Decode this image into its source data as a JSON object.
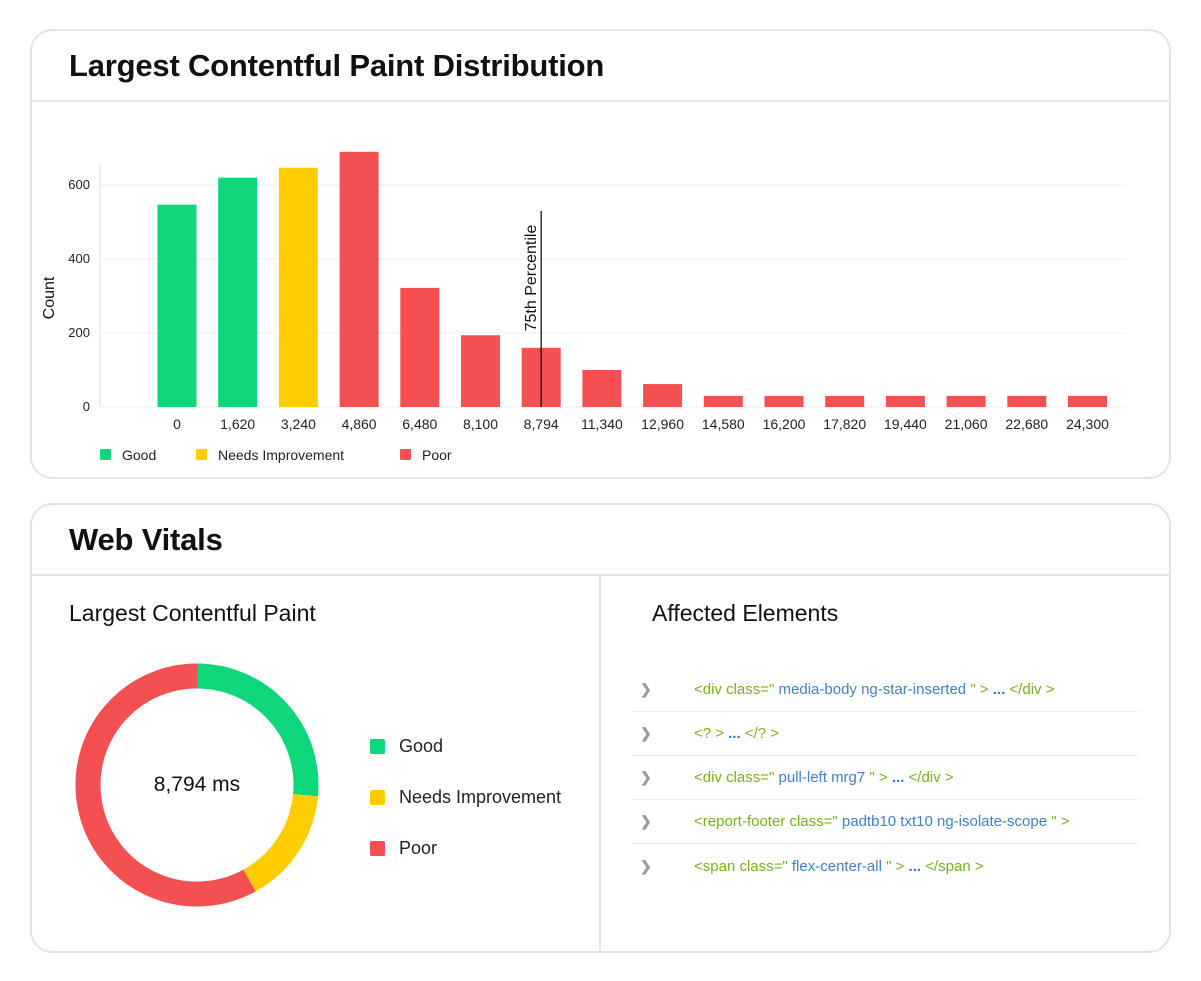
{
  "distribution": {
    "title": "Largest Contentful Paint Distribution"
  },
  "chart_data": {
    "type": "bar",
    "title": "Largest Contentful Paint Distribution",
    "xlabel": "",
    "ylabel": "Count",
    "ylim": [
      0,
      630
    ],
    "yticks": [
      0,
      200,
      400,
      600
    ],
    "grid": true,
    "legend_position": "bottom-left",
    "categories": [
      "0",
      "1,620",
      "3,240",
      "4,860",
      "6,480",
      "8,100",
      "8,794",
      "11,340",
      "12,960",
      "14,580",
      "16,200",
      "17,820",
      "19,440",
      "21,060",
      "22,680",
      "24,300"
    ],
    "values": [
      547,
      620,
      647,
      690,
      322,
      194,
      160,
      100,
      62,
      30,
      30,
      30,
      30,
      30,
      30,
      30
    ],
    "bar_status": [
      "good",
      "good",
      "needs",
      "poor",
      "poor",
      "poor",
      "poor",
      "poor",
      "poor",
      "poor",
      "poor",
      "poor",
      "poor",
      "poor",
      "poor",
      "poor"
    ],
    "legend": [
      {
        "key": "good",
        "label": "Good"
      },
      {
        "key": "needs",
        "label": "Needs Improvement"
      },
      {
        "key": "poor",
        "label": "Poor"
      }
    ],
    "marker": {
      "label": "75th Percentile",
      "category": "8,794"
    }
  },
  "colors": {
    "good": "#0ed67b",
    "needs": "#ffcc00",
    "poor": "#f44f51",
    "grid": "#ececec"
  },
  "web_vitals": {
    "title": "Web Vitals",
    "lcp": {
      "title": "Largest Contentful Paint",
      "value": "8,794 ms",
      "segments": [
        {
          "key": "good",
          "fraction": 0.265
        },
        {
          "key": "needs",
          "fraction": 0.155
        },
        {
          "key": "poor",
          "fraction": 0.58
        }
      ],
      "legend": [
        {
          "key": "good",
          "label": "Good"
        },
        {
          "key": "needs",
          "label": "Needs Improvement"
        },
        {
          "key": "poor",
          "label": "Poor"
        }
      ]
    },
    "affected": {
      "title": "Affected Elements",
      "icon": "chevron-right-icon",
      "items": [
        {
          "open": "<div class=\"",
          "cls": " media-body ng-star-inserted ",
          "close": "\" >",
          "dots": " ... ",
          "end": "</div >"
        },
        {
          "open": "<? >",
          "cls": "",
          "close": "",
          "dots": " ... ",
          "end": "</? >"
        },
        {
          "open": "<div class=\"",
          "cls": " pull-left mrg7 ",
          "close": "\" >",
          "dots": " ... ",
          "end": "</div >"
        },
        {
          "open": "<report-footer class=\"",
          "cls": " padtb10 txt10 ng-isolate-scope ",
          "close": "\" >",
          "dots": "",
          "end": ""
        },
        {
          "open": "<span class=\"",
          "cls": " flex-center-all ",
          "close": "\" >",
          "dots": " ... ",
          "end": "</span >"
        }
      ]
    }
  }
}
